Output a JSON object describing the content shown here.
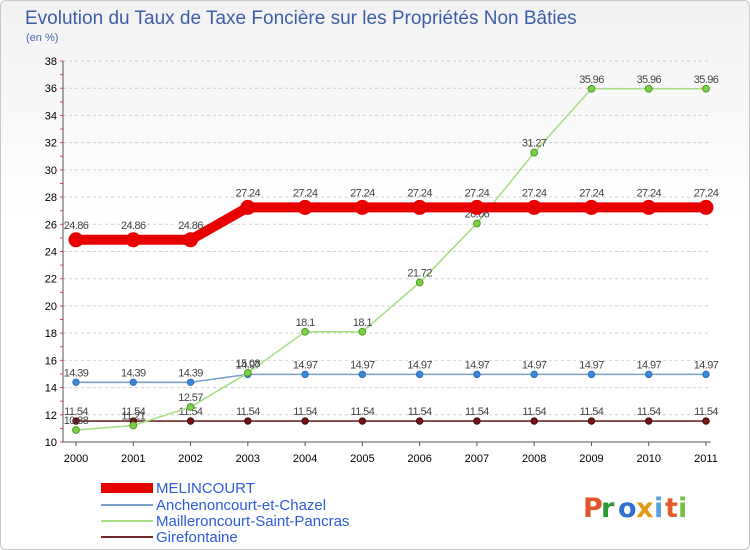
{
  "chart_data": {
    "type": "line",
    "title": "Evolution du Taux de Taxe Foncière sur les Propriétés Non Bâties",
    "subtitle": "(en %)",
    "xlabel": "",
    "ylabel": "",
    "categories": [
      "2000",
      "2001",
      "2002",
      "2003",
      "2004",
      "2005",
      "2006",
      "2007",
      "2008",
      "2009",
      "2010",
      "2011"
    ],
    "ylim": [
      10,
      38
    ],
    "yticks": [
      10,
      12,
      14,
      16,
      18,
      20,
      22,
      24,
      26,
      28,
      30,
      32,
      34,
      36,
      38
    ],
    "grid": "horizontal-dashed",
    "legend_position": "bottom-left",
    "series": [
      {
        "name": "MELINCOURT",
        "color": "#e80000",
        "values": [
          24.86,
          24.86,
          24.86,
          27.24,
          27.24,
          27.24,
          27.24,
          27.24,
          27.24,
          27.24,
          27.24,
          27.24
        ],
        "labels": [
          "24.86",
          "24.86",
          "24.86",
          "27.24",
          "27.24",
          "27.24",
          "27.24",
          "27.24",
          "27.24",
          "27.24",
          "27.24",
          "27.24"
        ]
      },
      {
        "name": "Anchenoncourt-et-Chazel",
        "color": "#7aa0cc",
        "values": [
          14.39,
          14.39,
          14.39,
          14.97,
          14.97,
          14.97,
          14.97,
          14.97,
          14.97,
          14.97,
          14.97,
          14.97
        ],
        "labels": [
          "14.39",
          "14.39",
          "14.39",
          "14.97",
          "14.97",
          "14.97",
          "14.97",
          "14.97",
          "14.97",
          "14.97",
          "14.97",
          "14.97"
        ]
      },
      {
        "name": "Mailleroncourt-Saint-Pancras",
        "color": "#a8df86",
        "values": [
          10.88,
          11.21,
          12.57,
          15.08,
          18.1,
          18.1,
          21.72,
          26.06,
          31.27,
          35.96,
          35.96,
          35.96
        ],
        "labels": [
          "10.88",
          "11.21",
          "12.57",
          "15.08",
          "18.1",
          "18.1",
          "21.72",
          "26.06",
          "31.27",
          "35.96",
          "35.96",
          "35.96"
        ]
      },
      {
        "name": "Girefontaine",
        "color": "#6e2a2a",
        "values": [
          11.54,
          11.54,
          11.54,
          11.54,
          11.54,
          11.54,
          11.54,
          11.54,
          11.54,
          11.54,
          11.54,
          11.54
        ],
        "labels": [
          "11.54",
          "11.54",
          "11.54",
          "11.54",
          "11.54",
          "11.54",
          "11.54",
          "11.54",
          "11.54",
          "11.54",
          "11.54",
          "11.54"
        ]
      }
    ]
  },
  "logo": {
    "letters": [
      "P",
      "r",
      "o",
      "x",
      "i",
      "t",
      "i"
    ],
    "colors": [
      "#e0542a",
      "#2a9a38",
      "#2f6fd0",
      "#e09a16",
      "#5aa0e0",
      "#e05a2a",
      "#7ac043"
    ]
  }
}
